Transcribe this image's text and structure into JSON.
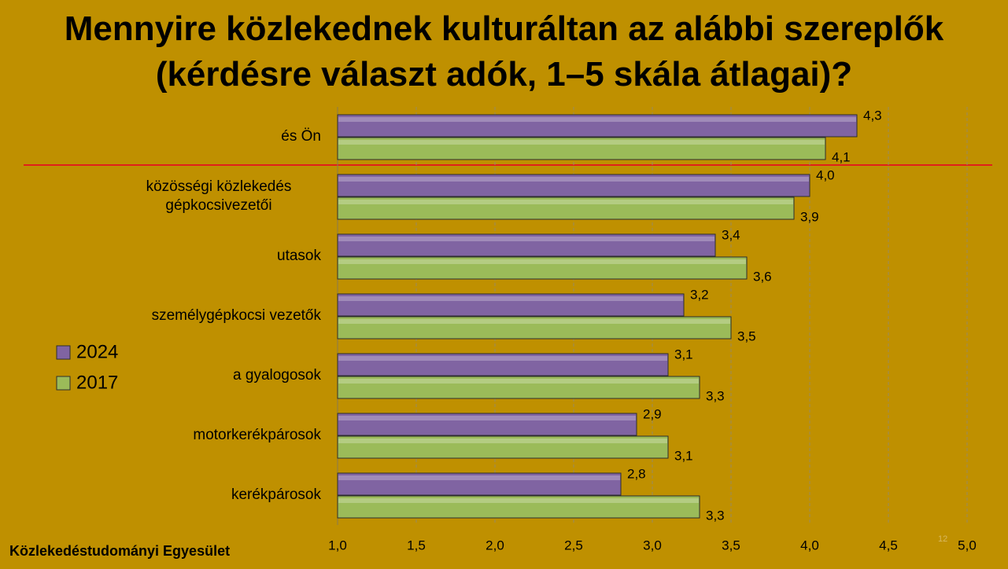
{
  "chart_data": {
    "type": "bar",
    "orientation": "horizontal",
    "title": "Mennyire közlekednek kulturáltan az alábbi szereplők (kérdésre választ adók, 1–5 skála átlagai)?",
    "categories": [
      "és Ön",
      "közösségi közlekedés gépkocsivezetői",
      "utasok",
      "személygépkocsi vezetők",
      "a gyalogosok",
      "motorkerékpárosok",
      "kerékpárosok"
    ],
    "series": [
      {
        "name": "2024",
        "color": "#8064a2",
        "values": [
          4.3,
          4.0,
          3.4,
          3.2,
          3.1,
          2.9,
          2.8
        ],
        "value_labels": [
          "4,3",
          "4,0",
          "3,4",
          "3,2",
          "3,1",
          "2,9",
          "2,8"
        ]
      },
      {
        "name": "2017",
        "color": "#9bbb59",
        "values": [
          4.1,
          3.9,
          3.6,
          3.5,
          3.3,
          3.1,
          3.3
        ],
        "value_labels": [
          "4,1",
          "3,9",
          "3,6",
          "3,5",
          "3,3",
          "3,1",
          "3,3"
        ]
      }
    ],
    "xlim": [
      1,
      5
    ],
    "xticks": [
      {
        "value": 1,
        "label": "1,0"
      },
      {
        "value": 1.5,
        "label": "1,5"
      },
      {
        "value": 2,
        "label": "2,0"
      },
      {
        "value": 2.5,
        "label": "2,5"
      },
      {
        "value": 3,
        "label": "3,0"
      },
      {
        "value": 3.5,
        "label": "3,5"
      },
      {
        "value": 4,
        "label": "4,0"
      },
      {
        "value": 4.5,
        "label": "4,5"
      },
      {
        "value": 5,
        "label": "5,0"
      }
    ],
    "grid": true,
    "legend": "left"
  },
  "footer": "Közlekedéstudományi Egyesület",
  "page_number": "12"
}
